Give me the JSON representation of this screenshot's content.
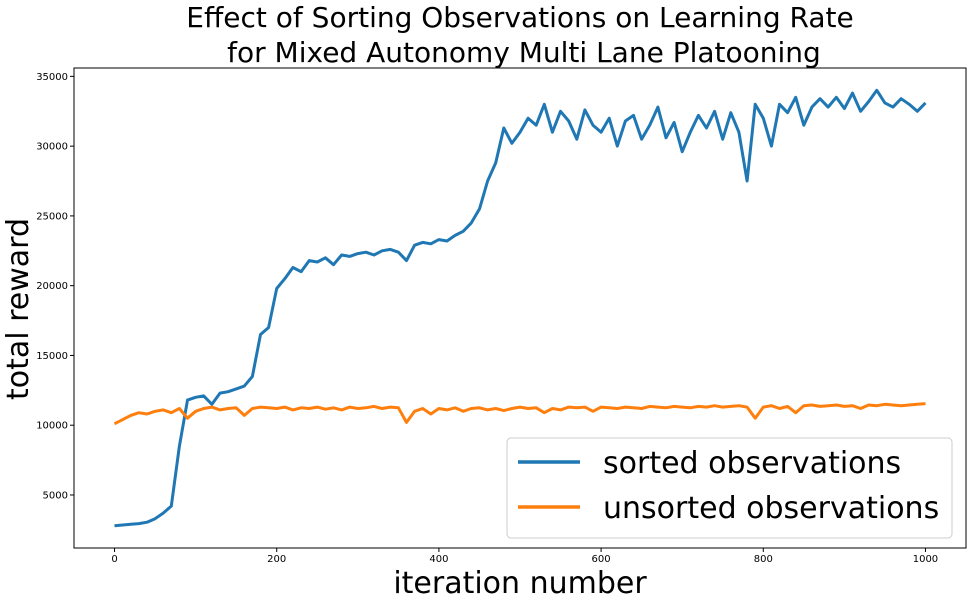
{
  "chart_data": {
    "type": "line",
    "title": "Effect of Sorting Observations on Learning Rate\nfor Mixed Autonomy Multi Lane Platooning",
    "title_lines": [
      "Effect of Sorting Observations on Learning Rate",
      "for Mixed Autonomy Multi Lane Platooning"
    ],
    "xlabel": "iteration number",
    "ylabel": "total reward",
    "xlim": [
      -50,
      1050
    ],
    "ylim": [
      1200,
      35600
    ],
    "xticks": [
      0,
      200,
      400,
      600,
      800,
      1000
    ],
    "yticks": [
      5000,
      10000,
      15000,
      20000,
      25000,
      30000,
      35000
    ],
    "grid": false,
    "legend_position": "lower-right",
    "x": [
      0,
      10,
      20,
      30,
      40,
      50,
      60,
      70,
      80,
      90,
      100,
      110,
      120,
      130,
      140,
      150,
      160,
      170,
      180,
      190,
      200,
      210,
      220,
      230,
      240,
      250,
      260,
      270,
      280,
      290,
      300,
      310,
      320,
      330,
      340,
      350,
      360,
      370,
      380,
      390,
      400,
      410,
      420,
      430,
      440,
      450,
      460,
      470,
      480,
      490,
      500,
      510,
      520,
      530,
      540,
      550,
      560,
      570,
      580,
      590,
      600,
      610,
      620,
      630,
      640,
      650,
      660,
      670,
      680,
      690,
      700,
      710,
      720,
      730,
      740,
      750,
      760,
      770,
      780,
      790,
      800,
      810,
      820,
      830,
      840,
      850,
      860,
      870,
      880,
      890,
      900,
      910,
      920,
      930,
      940,
      950,
      960,
      970,
      980,
      990,
      1000
    ],
    "series": [
      {
        "name": "sorted observations",
        "color": "#1f77b4",
        "values": [
          2800,
          2850,
          2900,
          2950,
          3050,
          3300,
          3700,
          4200,
          8500,
          11800,
          12000,
          12100,
          11500,
          12300,
          12400,
          12600,
          12800,
          13500,
          16500,
          17000,
          19800,
          20500,
          21300,
          21000,
          21800,
          21700,
          22000,
          21500,
          22200,
          22100,
          22300,
          22400,
          22200,
          22500,
          22600,
          22400,
          21800,
          22900,
          23100,
          23000,
          23300,
          23200,
          23600,
          23900,
          24500,
          25500,
          27500,
          28800,
          31300,
          30200,
          31000,
          32000,
          31500,
          33000,
          31000,
          32500,
          31800,
          30500,
          32600,
          31500,
          31000,
          32000,
          30000,
          31800,
          32200,
          30500,
          31500,
          32800,
          30600,
          31700,
          29600,
          31000,
          32200,
          31300,
          32500,
          30500,
          32400,
          31000,
          27500,
          33000,
          32000,
          30000,
          33000,
          32400,
          33500,
          31500,
          32800,
          33400,
          32800,
          33500,
          32700,
          33800,
          32500,
          33200,
          34000,
          33100,
          32800,
          33400,
          33000,
          32500,
          33100
        ]
      },
      {
        "name": "unsorted observations",
        "color": "#ff7f0e",
        "values": [
          10100,
          10400,
          10700,
          10900,
          10800,
          11000,
          11100,
          10900,
          11200,
          10500,
          11000,
          11200,
          11300,
          11100,
          11200,
          11250,
          10700,
          11200,
          11300,
          11250,
          11200,
          11300,
          11100,
          11250,
          11200,
          11300,
          11150,
          11250,
          11100,
          11300,
          11200,
          11250,
          11350,
          11200,
          11300,
          11250,
          10200,
          11000,
          11200,
          10800,
          11200,
          11100,
          11250,
          11000,
          11200,
          11250,
          11100,
          11200,
          11050,
          11200,
          11300,
          11200,
          11250,
          10900,
          11200,
          11100,
          11300,
          11250,
          11300,
          11000,
          11300,
          11250,
          11200,
          11300,
          11250,
          11200,
          11350,
          11300,
          11250,
          11350,
          11300,
          11250,
          11350,
          11300,
          11400,
          11300,
          11350,
          11400,
          11300,
          10500,
          11300,
          11400,
          11200,
          11350,
          10900,
          11400,
          11450,
          11350,
          11400,
          11450,
          11350,
          11400,
          11200,
          11450,
          11400,
          11500,
          11450,
          11400,
          11450,
          11500,
          11550
        ]
      }
    ]
  }
}
